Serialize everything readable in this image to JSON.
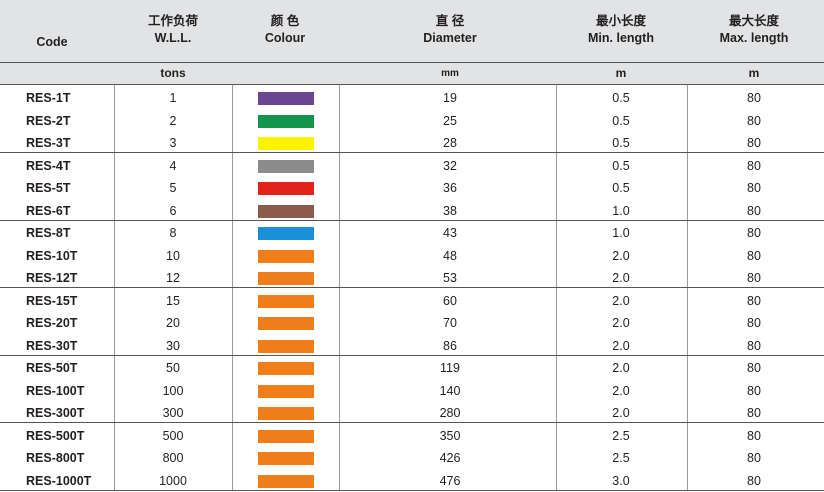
{
  "headers": {
    "code": {
      "en": "Code"
    },
    "wll": {
      "zh": "工作负荷",
      "en": "W.L.L."
    },
    "colour": {
      "zh": "颜 色",
      "en": "Colour"
    },
    "diameter": {
      "zh": "直 径",
      "en": "Diameter"
    },
    "min_length": {
      "zh": "最小长度",
      "en": "Min. length"
    },
    "max_length": {
      "zh": "最大长度",
      "en": "Max. length"
    }
  },
  "units": {
    "wll": "tons",
    "diameter": "mm",
    "min_length": "m",
    "max_length": "m"
  },
  "rows": [
    {
      "code": "RES-1T",
      "wll": "1",
      "color": "#6a4592",
      "diameter": "19",
      "min": "0.5",
      "max": "80"
    },
    {
      "code": "RES-2T",
      "wll": "2",
      "color": "#13954b",
      "diameter": "25",
      "min": "0.5",
      "max": "80"
    },
    {
      "code": "RES-3T",
      "wll": "3",
      "color": "#fff200",
      "diameter": "28",
      "min": "0.5",
      "max": "80"
    },
    {
      "code": "RES-4T",
      "wll": "4",
      "color": "#8c8c8c",
      "diameter": "32",
      "min": "0.5",
      "max": "80"
    },
    {
      "code": "RES-5T",
      "wll": "5",
      "color": "#e2231a",
      "diameter": "36",
      "min": "0.5",
      "max": "80"
    },
    {
      "code": "RES-6T",
      "wll": "6",
      "color": "#8b5a4a",
      "diameter": "38",
      "min": "1.0",
      "max": "80"
    },
    {
      "code": "RES-8T",
      "wll": "8",
      "color": "#1b8fd8",
      "diameter": "43",
      "min": "1.0",
      "max": "80"
    },
    {
      "code": "RES-10T",
      "wll": "10",
      "color": "#ef7d1a",
      "diameter": "48",
      "min": "2.0",
      "max": "80"
    },
    {
      "code": "RES-12T",
      "wll": "12",
      "color": "#ef7d1a",
      "diameter": "53",
      "min": "2.0",
      "max": "80"
    },
    {
      "code": "RES-15T",
      "wll": "15",
      "color": "#ef7d1a",
      "diameter": "60",
      "min": "2.0",
      "max": "80"
    },
    {
      "code": "RES-20T",
      "wll": "20",
      "color": "#ef7d1a",
      "diameter": "70",
      "min": "2.0",
      "max": "80"
    },
    {
      "code": "RES-30T",
      "wll": "30",
      "color": "#ef7d1a",
      "diameter": "86",
      "min": "2.0",
      "max": "80"
    },
    {
      "code": "RES-50T",
      "wll": "50",
      "color": "#ef7d1a",
      "diameter": "119",
      "min": "2.0",
      "max": "80"
    },
    {
      "code": "RES-100T",
      "wll": "100",
      "color": "#ef7d1a",
      "diameter": "140",
      "min": "2.0",
      "max": "80"
    },
    {
      "code": "RES-300T",
      "wll": "300",
      "color": "#ef7d1a",
      "diameter": "280",
      "min": "2.0",
      "max": "80"
    },
    {
      "code": "RES-500T",
      "wll": "500",
      "color": "#ef7d1a",
      "diameter": "350",
      "min": "2.5",
      "max": "80"
    },
    {
      "code": "RES-800T",
      "wll": "800",
      "color": "#ef7d1a",
      "diameter": "426",
      "min": "2.5",
      "max": "80"
    },
    {
      "code": "RES-1000T",
      "wll": "1000",
      "color": "#ef7d1a",
      "diameter": "476",
      "min": "3.0",
      "max": "80"
    }
  ]
}
